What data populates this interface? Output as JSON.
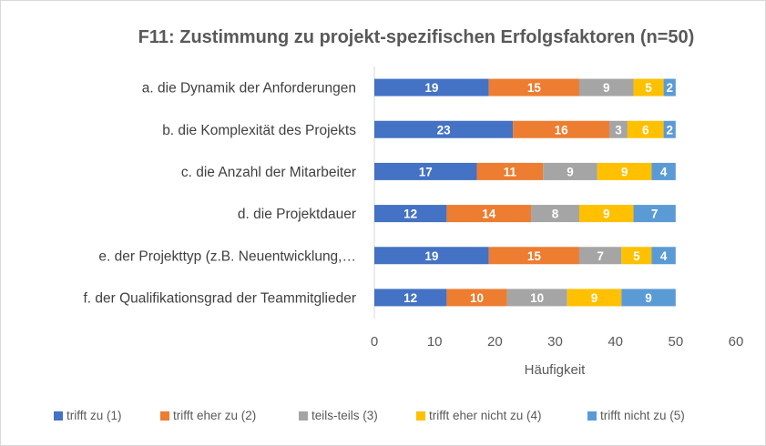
{
  "chart_data": {
    "type": "bar",
    "orientation": "horizontal",
    "stacked": true,
    "title": "F11: Zustimmung zu projekt-spezifischen Erfolgsfaktoren (n=50)",
    "xlabel": "Häufigkeit",
    "ylabel": "",
    "xlim": [
      0,
      60
    ],
    "xticks": [
      "0",
      "10",
      "20",
      "30",
      "40",
      "50",
      "60"
    ],
    "grid": false,
    "legend_position": "bottom",
    "categories": [
      "a. die Dynamik der Anforderungen",
      "b. die Komplexität des Projekts",
      "c. die Anzahl der Mitarbeiter",
      "d. die Projektdauer",
      "e. der Projekttyp (z.B. Neuentwicklung,…",
      "f. der Qualifikationsgrad der Teammitglieder"
    ],
    "series": [
      {
        "name": "trifft zu (1)",
        "color": "#4472c4",
        "values": [
          19,
          23,
          17,
          12,
          19,
          12
        ]
      },
      {
        "name": "trifft eher zu (2)",
        "color": "#ed7d31",
        "values": [
          15,
          16,
          11,
          14,
          15,
          10
        ]
      },
      {
        "name": "teils-teils (3)",
        "color": "#a5a5a5",
        "values": [
          9,
          3,
          9,
          8,
          7,
          10
        ]
      },
      {
        "name": "trifft eher nicht zu (4)",
        "color": "#ffc000",
        "values": [
          5,
          6,
          9,
          9,
          5,
          9
        ]
      },
      {
        "name": "trifft nicht zu (5)",
        "color": "#5b9bd5",
        "values": [
          2,
          2,
          4,
          7,
          4,
          9
        ]
      }
    ]
  }
}
